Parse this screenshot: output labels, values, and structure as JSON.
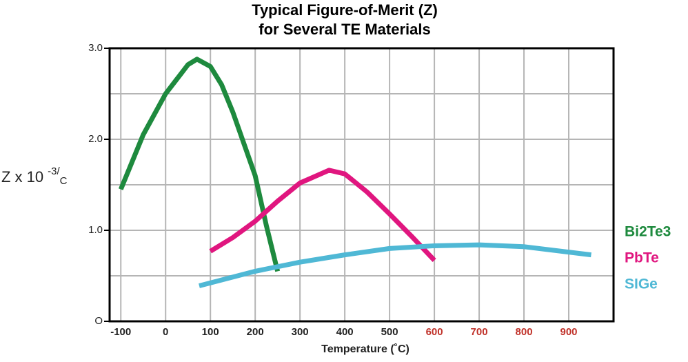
{
  "chart_data": {
    "type": "line",
    "title": [
      "Typical Figure-of-Merit (Z)",
      "for Several TE Materials"
    ],
    "xlabel": "Temperature (˚C)",
    "ylabel": {
      "base": "Z x 10",
      "exponent": "-3/",
      "unit": "C"
    },
    "xlim": [
      -125,
      1000
    ],
    "ylim": [
      0,
      3
    ],
    "xticks": [
      -100,
      0,
      100,
      200,
      300,
      400,
      500,
      600,
      700,
      800,
      900
    ],
    "xtick_colors": [
      "#222",
      "#222",
      "#222",
      "#222",
      "#222",
      "#222",
      "#222",
      "#c0322a",
      "#c0322a",
      "#c0322a",
      "#c0322a"
    ],
    "yticks": [
      {
        "value": 0,
        "label": "O"
      },
      {
        "value": 1,
        "label": "1.0"
      },
      {
        "value": 2,
        "label": "2.0"
      },
      {
        "value": 3,
        "label": "3.0"
      }
    ],
    "y_minor_grid": [
      0.5,
      1.5,
      2.5
    ],
    "grid": true,
    "legend": "right",
    "series": [
      {
        "name": "Bi2Te3",
        "color": "#1e8a3e",
        "x": [
          -100,
          -50,
          0,
          50,
          70,
          100,
          125,
          150,
          175,
          200,
          225,
          250
        ],
        "values": [
          1.45,
          2.05,
          2.5,
          2.82,
          2.88,
          2.8,
          2.6,
          2.3,
          1.95,
          1.6,
          1.05,
          0.55
        ]
      },
      {
        "name": "PbTe",
        "color": "#e0167f",
        "x": [
          100,
          150,
          200,
          250,
          300,
          365,
          400,
          450,
          500,
          550,
          600
        ],
        "values": [
          0.77,
          0.92,
          1.1,
          1.32,
          1.52,
          1.66,
          1.62,
          1.42,
          1.18,
          0.93,
          0.67
        ]
      },
      {
        "name": "SIGe",
        "color": "#4fb8d5",
        "x": [
          75,
          200,
          300,
          400,
          500,
          600,
          700,
          800,
          950
        ],
        "values": [
          0.39,
          0.55,
          0.65,
          0.73,
          0.8,
          0.83,
          0.84,
          0.82,
          0.73
        ]
      }
    ]
  }
}
